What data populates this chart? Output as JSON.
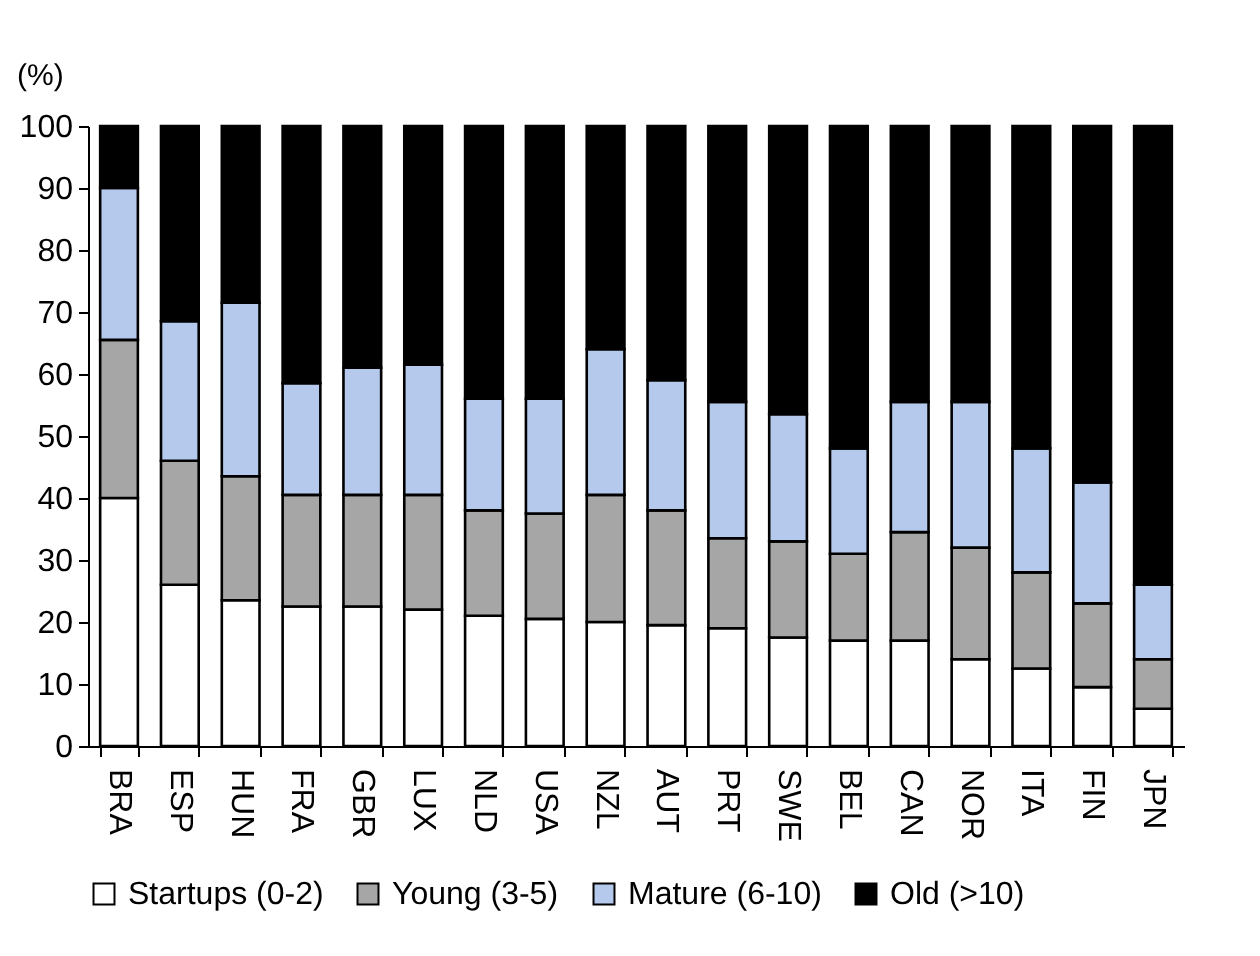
{
  "chart_data": {
    "type": "bar",
    "stacked": true,
    "ylabel": "(%)",
    "categories": [
      "BRA",
      "ESP",
      "HUN",
      "FRA",
      "GBR",
      "LUX",
      "NLD",
      "USA",
      "NZL",
      "AUT",
      "PRT",
      "SWE",
      "BEL",
      "CAN",
      "NOR",
      "ITA",
      "FIN",
      "JPN"
    ],
    "series": [
      {
        "name": "Startups (0-2)",
        "color": "#ffffff",
        "values": [
          40,
          26,
          23.5,
          22.5,
          22.5,
          22,
          21,
          20.5,
          20,
          19.5,
          19,
          17.5,
          17,
          17,
          14,
          12.5,
          9.5,
          6
        ]
      },
      {
        "name": "Young (3-5)",
        "color": "#a6a6a6",
        "values": [
          25.5,
          20,
          20,
          18,
          18,
          18.5,
          17,
          17,
          20.5,
          18.5,
          14.5,
          15.5,
          14,
          17.5,
          18,
          15.5,
          13.5,
          8
        ]
      },
      {
        "name": "Mature (6-10)",
        "color": "#b4c9ec",
        "values": [
          24.5,
          22.5,
          28,
          18,
          20.5,
          21,
          18,
          18.5,
          23.5,
          21,
          22,
          20.5,
          17,
          21,
          23.5,
          20,
          19.5,
          12
        ]
      },
      {
        "name": "Old (>10)",
        "color": "#000000",
        "values": [
          10,
          31.5,
          28.5,
          41.5,
          39,
          38.5,
          44,
          44,
          36,
          41,
          44.5,
          46.5,
          52,
          44.5,
          44.5,
          52,
          57.5,
          74
        ]
      }
    ],
    "ylim": [
      0,
      100
    ],
    "yticks": [
      0,
      10,
      20,
      30,
      40,
      50,
      60,
      70,
      80,
      90,
      100
    ],
    "grid": false,
    "legend": "bottom"
  }
}
